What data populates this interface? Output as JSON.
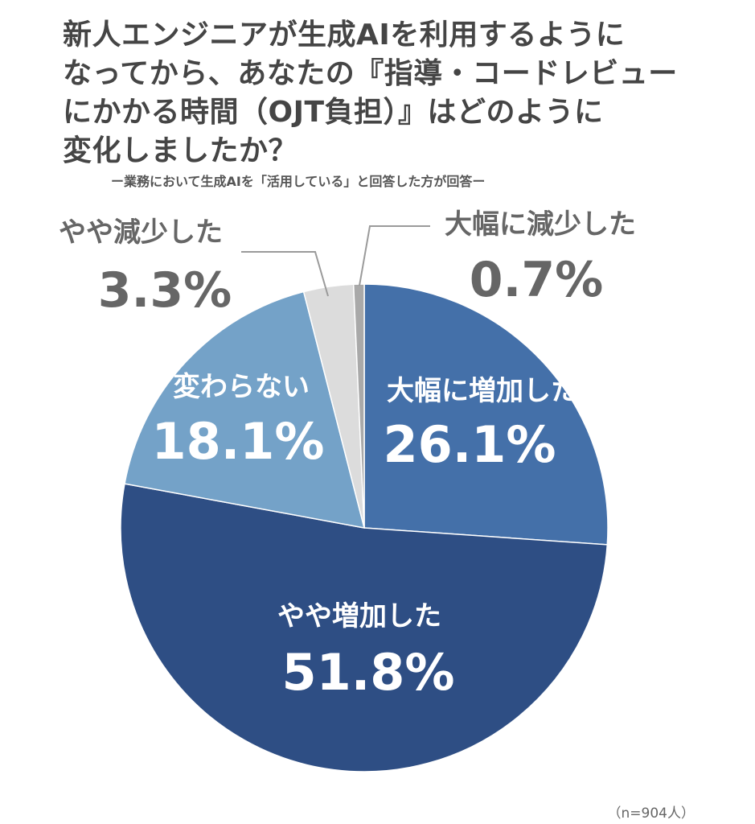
{
  "title_lines": [
    "新人エンジニアが生成AIを利用するように",
    "なってから、あなたの『指導・コードレビュー",
    "にかかる時間（OJT負担）』はどのように",
    "変化しましたか？"
  ],
  "subtitle": "ー業務において生成AIを「活用している」と回答した方が回答ー",
  "note": "（n=904人）",
  "colors": {
    "large_increase": "#4470a9",
    "slight_increase": "#2e4e84",
    "no_change": "#74a2c8",
    "slight_decrease": "#dcdcdc",
    "large_decrease": "#a9a9a9",
    "inside_text": "#ffffff",
    "outside_text": "#666666"
  },
  "chart_data": {
    "type": "pie",
    "title": "新人エンジニアが生成AIを利用するようになってから、あなたの『指導・コードレビューにかかる時間（OJT負担）』はどのように変化しましたか？",
    "subtitle": "ー業務において生成AIを「活用している」と回答した方が回答ー",
    "unit": "%",
    "start": "12 o'clock",
    "direction": "clockwise",
    "slices": [
      {
        "label": "大幅に増加した",
        "value": 26.1,
        "value_label": "26.1%",
        "color_key": "large_increase",
        "label_style": "inside"
      },
      {
        "label": "やや増加した",
        "value": 51.8,
        "value_label": "51.8%",
        "color_key": "slight_increase",
        "label_style": "inside"
      },
      {
        "label": "変わらない",
        "value": 18.1,
        "value_label": "18.1%",
        "color_key": "no_change",
        "label_style": "inside"
      },
      {
        "label": "やや減少した",
        "value": 3.3,
        "value_label": "3.3%",
        "color_key": "slight_decrease",
        "label_style": "outside-left"
      },
      {
        "label": "大幅に減少した",
        "value": 0.7,
        "value_label": "0.7%",
        "color_key": "large_decrease",
        "label_style": "outside-right"
      }
    ],
    "n": 904
  }
}
